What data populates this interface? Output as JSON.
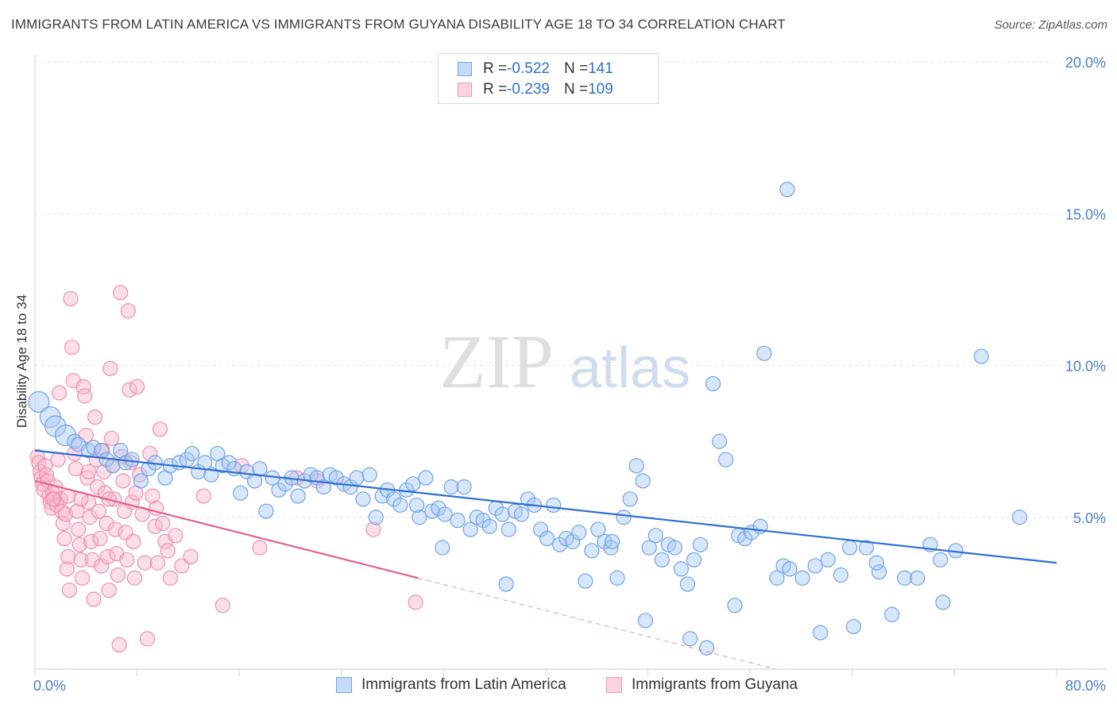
{
  "title": "IMMIGRANTS FROM LATIN AMERICA VS IMMIGRANTS FROM GUYANA DISABILITY AGE 18 TO 34 CORRELATION CHART",
  "source": "Source: ZipAtlas.com",
  "watermark": {
    "zip": "ZIP",
    "atlas": "atlas"
  },
  "legend_top": {
    "rows": [
      {
        "r_label": "R = ",
        "r_value": "-0.522",
        "n_label": "N = ",
        "n_value": "141",
        "color": "#6fa3e8"
      },
      {
        "r_label": "R = ",
        "r_value": "-0.239",
        "n_label": "N = ",
        "n_value": "109",
        "color": "#f29ab7"
      }
    ]
  },
  "legend_bottom": {
    "items": [
      {
        "label": "Immigrants from Latin America",
        "color": "#6fa3e8"
      },
      {
        "label": "Immigrants from Guyana",
        "color": "#f29ab7"
      }
    ]
  },
  "chart_data": {
    "type": "scatter",
    "title": "IMMIGRANTS FROM LATIN AMERICA VS IMMIGRANTS FROM GUYANA DISABILITY AGE 18 TO 34 CORRELATION CHART",
    "xlabel": "",
    "ylabel": "Disability Age 18 to 34",
    "xlim": [
      0,
      80
    ],
    "ylim": [
      0,
      20
    ],
    "x_tick_labels": [
      "0.0%",
      "80.0%"
    ],
    "y_ticks": [
      5,
      10,
      15,
      20
    ],
    "y_tick_labels": [
      "5.0%",
      "10.0%",
      "15.0%",
      "20.0%"
    ],
    "grid": true,
    "legend_placement": "top-center",
    "series": [
      {
        "name": "Immigrants from Latin America",
        "color": "#6fa3e8",
        "line_color": "#2f6fd0",
        "trend": {
          "x": [
            0,
            80
          ],
          "y": [
            7.2,
            3.5
          ]
        },
        "points": [
          [
            0.3,
            8.8
          ],
          [
            1.2,
            8.3
          ],
          [
            1.6,
            8.0
          ],
          [
            2.4,
            7.7
          ],
          [
            3.1,
            7.5
          ],
          [
            3.4,
            7.4
          ],
          [
            4.2,
            7.2
          ],
          [
            4.6,
            7.3
          ],
          [
            5.2,
            7.2
          ],
          [
            5.6,
            6.9
          ],
          [
            6.1,
            6.7
          ],
          [
            6.7,
            7.2
          ],
          [
            7.1,
            6.8
          ],
          [
            7.6,
            6.9
          ],
          [
            8.3,
            6.2
          ],
          [
            8.9,
            6.6
          ],
          [
            9.4,
            6.8
          ],
          [
            10.2,
            6.3
          ],
          [
            10.6,
            6.7
          ],
          [
            11.3,
            6.8
          ],
          [
            11.9,
            6.9
          ],
          [
            12.3,
            7.1
          ],
          [
            12.8,
            6.5
          ],
          [
            13.3,
            6.8
          ],
          [
            13.8,
            6.4
          ],
          [
            14.3,
            7.1
          ],
          [
            14.7,
            6.7
          ],
          [
            15.2,
            6.8
          ],
          [
            15.6,
            6.6
          ],
          [
            16.1,
            5.8
          ],
          [
            16.6,
            6.5
          ],
          [
            17.2,
            6.2
          ],
          [
            17.6,
            6.6
          ],
          [
            18.1,
            5.2
          ],
          [
            18.6,
            6.3
          ],
          [
            19.1,
            5.9
          ],
          [
            19.6,
            6.1
          ],
          [
            20.1,
            6.3
          ],
          [
            20.6,
            5.7
          ],
          [
            21.1,
            6.2
          ],
          [
            21.6,
            6.4
          ],
          [
            22.1,
            6.3
          ],
          [
            22.6,
            6.0
          ],
          [
            23.1,
            6.4
          ],
          [
            23.6,
            6.3
          ],
          [
            24.2,
            6.1
          ],
          [
            24.7,
            6.0
          ],
          [
            25.2,
            6.3
          ],
          [
            25.7,
            5.6
          ],
          [
            26.2,
            6.4
          ],
          [
            26.7,
            5.0
          ],
          [
            27.2,
            5.7
          ],
          [
            27.6,
            5.9
          ],
          [
            28.1,
            5.6
          ],
          [
            28.6,
            5.4
          ],
          [
            29.1,
            5.9
          ],
          [
            29.6,
            6.1
          ],
          [
            30.1,
            5.0
          ],
          [
            30.6,
            6.3
          ],
          [
            31.1,
            5.2
          ],
          [
            31.6,
            5.3
          ],
          [
            32.1,
            5.1
          ],
          [
            32.6,
            6.0
          ],
          [
            33.1,
            4.9
          ],
          [
            33.6,
            6.0
          ],
          [
            34.1,
            4.6
          ],
          [
            34.6,
            5.0
          ],
          [
            35.1,
            4.9
          ],
          [
            35.6,
            4.7
          ],
          [
            36.1,
            5.3
          ],
          [
            36.6,
            5.1
          ],
          [
            37.1,
            4.6
          ],
          [
            37.6,
            5.2
          ],
          [
            38.1,
            5.1
          ],
          [
            38.6,
            5.6
          ],
          [
            39.1,
            5.4
          ],
          [
            39.6,
            4.6
          ],
          [
            40.1,
            4.3
          ],
          [
            40.6,
            5.4
          ],
          [
            41.1,
            4.1
          ],
          [
            41.6,
            4.3
          ],
          [
            42.1,
            4.2
          ],
          [
            42.6,
            4.5
          ],
          [
            43.1,
            2.9
          ],
          [
            43.6,
            3.9
          ],
          [
            44.1,
            4.6
          ],
          [
            44.6,
            4.2
          ],
          [
            45.1,
            4.0
          ],
          [
            45.6,
            3.0
          ],
          [
            46.1,
            5.0
          ],
          [
            46.6,
            5.6
          ],
          [
            47.1,
            6.7
          ],
          [
            47.6,
            6.2
          ],
          [
            48.1,
            4.0
          ],
          [
            48.6,
            4.4
          ],
          [
            49.1,
            3.6
          ],
          [
            49.6,
            4.1
          ],
          [
            50.1,
            4.0
          ],
          [
            50.6,
            3.3
          ],
          [
            51.1,
            2.8
          ],
          [
            51.6,
            3.6
          ],
          [
            52.1,
            4.1
          ],
          [
            52.6,
            0.7
          ],
          [
            53.1,
            9.4
          ],
          [
            53.6,
            7.5
          ],
          [
            54.1,
            6.9
          ],
          [
            55.1,
            4.4
          ],
          [
            55.6,
            4.3
          ],
          [
            56.1,
            4.5
          ],
          [
            57.1,
            10.4
          ],
          [
            58.1,
            3.0
          ],
          [
            58.6,
            3.4
          ],
          [
            59.1,
            3.3
          ],
          [
            60.1,
            3.0
          ],
          [
            61.1,
            3.4
          ],
          [
            62.1,
            3.6
          ],
          [
            63.1,
            3.1
          ],
          [
            64.1,
            1.4
          ],
          [
            65.1,
            4.0
          ],
          [
            66.1,
            3.2
          ],
          [
            67.1,
            1.8
          ],
          [
            68.1,
            3.0
          ],
          [
            69.1,
            3.0
          ],
          [
            70.1,
            4.1
          ],
          [
            71.1,
            2.2
          ],
          [
            72.1,
            3.9
          ],
          [
            74.1,
            10.3
          ],
          [
            77.1,
            5.0
          ],
          [
            58.9,
            15.8
          ],
          [
            51.3,
            1.0
          ],
          [
            45.2,
            4.2
          ],
          [
            54.8,
            2.1
          ],
          [
            61.5,
            1.2
          ],
          [
            47.8,
            1.6
          ],
          [
            36.9,
            2.8
          ],
          [
            63.8,
            4.0
          ],
          [
            65.9,
            3.5
          ],
          [
            70.9,
            3.6
          ],
          [
            56.8,
            4.7
          ],
          [
            31.9,
            4.0
          ],
          [
            29.9,
            5.4
          ]
        ]
      },
      {
        "name": "Immigrants from Guyana",
        "color": "#f29ab7",
        "line_color": "#e0618e",
        "trend": {
          "x": [
            0,
            30
          ],
          "y": [
            6.2,
            3.0
          ]
        },
        "trend_dashed": {
          "x": [
            30,
            58
          ],
          "y": [
            3.0,
            0.0
          ]
        },
        "points": [
          [
            0.2,
            7.0
          ],
          [
            0.3,
            6.8
          ],
          [
            0.4,
            6.5
          ],
          [
            0.5,
            6.3
          ],
          [
            0.6,
            6.1
          ],
          [
            0.7,
            5.9
          ],
          [
            0.8,
            6.7
          ],
          [
            0.9,
            6.4
          ],
          [
            1.0,
            6.2
          ],
          [
            1.1,
            5.7
          ],
          [
            1.2,
            5.5
          ],
          [
            1.3,
            5.3
          ],
          [
            1.4,
            5.8
          ],
          [
            1.5,
            5.6
          ],
          [
            1.6,
            6.0
          ],
          [
            1.7,
            5.4
          ],
          [
            1.8,
            6.9
          ],
          [
            1.9,
            9.1
          ],
          [
            2.0,
            5.6
          ],
          [
            2.1,
            5.2
          ],
          [
            2.2,
            4.8
          ],
          [
            2.3,
            4.3
          ],
          [
            2.4,
            5.1
          ],
          [
            2.5,
            3.3
          ],
          [
            2.6,
            3.7
          ],
          [
            2.7,
            2.6
          ],
          [
            2.8,
            12.2
          ],
          [
            2.9,
            10.6
          ],
          [
            3.0,
            9.5
          ],
          [
            3.1,
            7.1
          ],
          [
            3.2,
            6.6
          ],
          [
            3.3,
            5.2
          ],
          [
            3.4,
            4.6
          ],
          [
            3.5,
            4.1
          ],
          [
            3.6,
            3.6
          ],
          [
            3.7,
            3.0
          ],
          [
            3.8,
            9.3
          ],
          [
            3.9,
            9.0
          ],
          [
            4.0,
            7.7
          ],
          [
            4.1,
            6.3
          ],
          [
            4.2,
            5.5
          ],
          [
            4.3,
            5.0
          ],
          [
            4.4,
            4.2
          ],
          [
            4.5,
            3.6
          ],
          [
            4.6,
            2.3
          ],
          [
            4.7,
            8.3
          ],
          [
            4.8,
            6.9
          ],
          [
            4.9,
            6.0
          ],
          [
            5.0,
            5.2
          ],
          [
            5.1,
            4.3
          ],
          [
            5.2,
            3.4
          ],
          [
            5.3,
            7.2
          ],
          [
            5.4,
            6.5
          ],
          [
            5.5,
            5.8
          ],
          [
            5.6,
            4.8
          ],
          [
            5.7,
            3.7
          ],
          [
            5.8,
            2.6
          ],
          [
            5.9,
            9.9
          ],
          [
            6.0,
            7.6
          ],
          [
            6.1,
            6.7
          ],
          [
            6.2,
            5.6
          ],
          [
            6.3,
            4.6
          ],
          [
            6.4,
            3.8
          ],
          [
            6.5,
            3.1
          ],
          [
            6.6,
            0.8
          ],
          [
            6.7,
            12.4
          ],
          [
            6.8,
            7.0
          ],
          [
            6.9,
            6.2
          ],
          [
            7.0,
            5.2
          ],
          [
            7.1,
            4.5
          ],
          [
            7.2,
            3.6
          ],
          [
            7.3,
            11.8
          ],
          [
            7.4,
            9.2
          ],
          [
            7.5,
            6.8
          ],
          [
            7.6,
            5.5
          ],
          [
            7.7,
            4.2
          ],
          [
            7.8,
            3.0
          ],
          [
            8.0,
            9.3
          ],
          [
            8.2,
            6.4
          ],
          [
            8.4,
            5.1
          ],
          [
            8.6,
            3.5
          ],
          [
            8.8,
            1.0
          ],
          [
            9.0,
            7.1
          ],
          [
            9.2,
            5.7
          ],
          [
            9.4,
            4.7
          ],
          [
            9.6,
            3.5
          ],
          [
            9.8,
            7.9
          ],
          [
            10.0,
            4.8
          ],
          [
            10.2,
            4.2
          ],
          [
            10.4,
            3.9
          ],
          [
            10.6,
            3.0
          ],
          [
            11.0,
            4.4
          ],
          [
            11.5,
            3.4
          ],
          [
            12.2,
            3.7
          ],
          [
            13.2,
            5.7
          ],
          [
            14.7,
            2.1
          ],
          [
            16.2,
            6.7
          ],
          [
            17.6,
            4.0
          ],
          [
            20.5,
            6.3
          ],
          [
            22.1,
            6.2
          ],
          [
            26.5,
            4.6
          ],
          [
            29.8,
            2.2
          ],
          [
            1.4,
            5.6
          ],
          [
            2.6,
            5.7
          ],
          [
            3.6,
            5.6
          ],
          [
            4.2,
            6.5
          ],
          [
            5.8,
            5.6
          ],
          [
            7.9,
            5.8
          ],
          [
            9.5,
            5.3
          ]
        ]
      }
    ]
  }
}
